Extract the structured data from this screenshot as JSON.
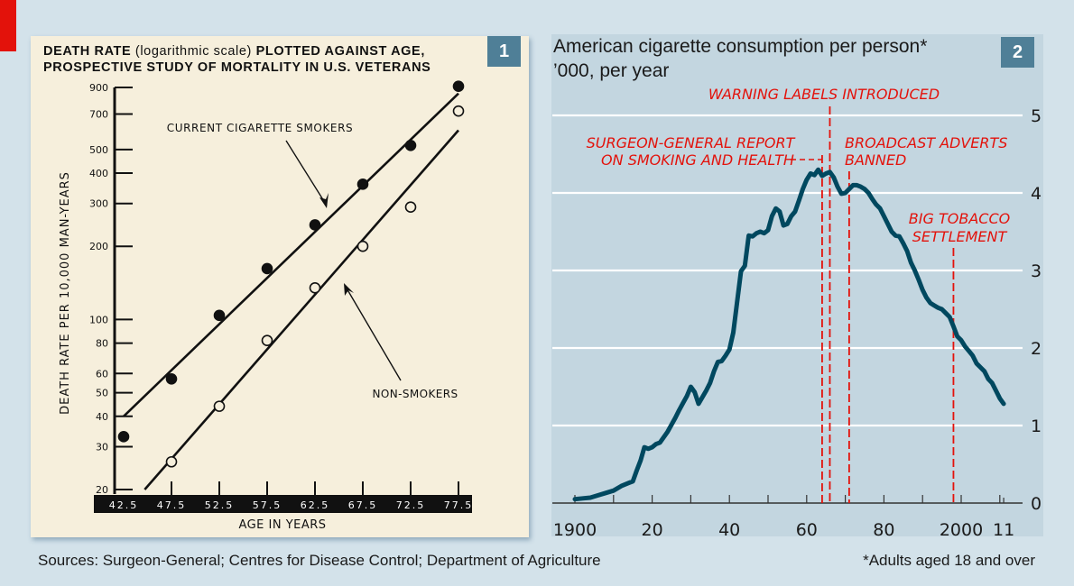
{
  "corner_mark_color": "#e3120b",
  "panel1": {
    "badge": "1",
    "title_bold_1": "DEATH RATE ",
    "title_normal": "(logarithmic scale)",
    "title_bold_2": " PLOTTED AGAINST AGE,",
    "title_line2": "PROSPECTIVE STUDY OF MORTALITY IN U.S. VETERANS"
  },
  "panel2": {
    "badge": "2",
    "title_line1": "American cigarette consumption per person*",
    "title_line2": "’000, per year"
  },
  "footer": {
    "sources": "Sources: Surgeon-General; Centres for Disease Control; Department of Agriculture",
    "note": "*Adults aged 18 and over"
  },
  "colors": {
    "curve": "#00485f",
    "annotation": "#e3120b",
    "badge": "#4f7f97",
    "grid": "#ffffff"
  },
  "chart_data": [
    {
      "type": "scatter",
      "title": "DEATH RATE (logarithmic scale) PLOTTED AGAINST AGE, PROSPECTIVE STUDY OF MORTALITY IN U.S. VETERANS",
      "xlabel": "AGE IN YEARS",
      "ylabel": "DEATH RATE PER 10,000 MAN-YEARS",
      "yscale": "log",
      "ylim": [
        20,
        900
      ],
      "xlim": [
        42.5,
        77.5
      ],
      "x_ticks": [
        "42.5",
        "47.5",
        "52.5",
        "57.5",
        "62.5",
        "67.5",
        "72.5",
        "77.5"
      ],
      "y_ticks": [
        900,
        700,
        500,
        400,
        300,
        200,
        100,
        80,
        60,
        50,
        40,
        30,
        20
      ],
      "series": [
        {
          "name": "CURRENT CIGARETTE SMOKERS",
          "marker": "filled",
          "x": [
            42.5,
            47.5,
            52.5,
            57.5,
            62.5,
            67.5,
            72.5,
            77.5
          ],
          "values": [
            33,
            57,
            104,
            162,
            245,
            360,
            520,
            910
          ],
          "fit_line": {
            "x": [
              42.5,
              77.5
            ],
            "y": [
              40,
              850
            ]
          }
        },
        {
          "name": "NON-SMOKERS",
          "marker": "open",
          "x": [
            47.5,
            52.5,
            57.5,
            62.5,
            67.5,
            72.5,
            77.5
          ],
          "values": [
            26,
            44,
            82,
            135,
            200,
            290,
            720
          ],
          "fit_line": {
            "x": [
              44.7,
              77.5
            ],
            "y": [
              20,
              600
            ]
          }
        }
      ],
      "annotations": [
        {
          "text": "CURRENT CIGARETTE SMOKERS",
          "arrow_to": [
            62.5,
            270
          ]
        },
        {
          "text": "NON-SMOKERS",
          "arrow_to": [
            66.0,
            150
          ]
        }
      ]
    },
    {
      "type": "line",
      "title": "American cigarette consumption per person*",
      "subtitle": "’000, per year",
      "ylim": [
        0,
        5
      ],
      "xlim": [
        1900,
        2011
      ],
      "y_ticks": [
        "0",
        "1",
        "2",
        "3",
        "4",
        "5"
      ],
      "x_tick_labels": [
        "1900",
        "20",
        "40",
        "60",
        "80",
        "2000",
        "11"
      ],
      "x_tick_values": [
        1900,
        1920,
        1940,
        1960,
        1980,
        2000,
        2011
      ],
      "grid": true,
      "series": [
        {
          "name": "Consumption per person",
          "x": [
            1900,
            1902,
            1904,
            1906,
            1908,
            1910,
            1912,
            1914,
            1915,
            1916,
            1917,
            1918,
            1919,
            1920,
            1921,
            1922,
            1924,
            1926,
            1927,
            1928,
            1929,
            1930,
            1931,
            1932,
            1934,
            1935,
            1936,
            1937,
            1938,
            1939,
            1940,
            1941,
            1942,
            1943,
            1944,
            1945,
            1946,
            1947,
            1948,
            1949,
            1950,
            1951,
            1952,
            1953,
            1954,
            1955,
            1956,
            1957,
            1958,
            1959,
            1960,
            1961,
            1962,
            1963,
            1964,
            1965,
            1966,
            1967,
            1968,
            1969,
            1970,
            1971,
            1972,
            1973,
            1974,
            1975,
            1976,
            1977,
            1978,
            1979,
            1980,
            1981,
            1982,
            1983,
            1984,
            1985,
            1986,
            1987,
            1988,
            1989,
            1990,
            1991,
            1992,
            1993,
            1994,
            1995,
            1996,
            1997,
            1998,
            1999,
            2000,
            2001,
            2002,
            2003,
            2004,
            2005,
            2006,
            2007,
            2008,
            2009,
            2010,
            2011
          ],
          "values": [
            0.05,
            0.06,
            0.07,
            0.1,
            0.13,
            0.16,
            0.22,
            0.26,
            0.28,
            0.42,
            0.55,
            0.72,
            0.7,
            0.72,
            0.76,
            0.78,
            0.92,
            1.1,
            1.2,
            1.29,
            1.38,
            1.5,
            1.43,
            1.28,
            1.45,
            1.55,
            1.7,
            1.82,
            1.83,
            1.9,
            1.98,
            2.2,
            2.6,
            2.99,
            3.06,
            3.45,
            3.44,
            3.48,
            3.5,
            3.48,
            3.52,
            3.7,
            3.8,
            3.76,
            3.58,
            3.6,
            3.7,
            3.76,
            3.9,
            4.05,
            4.17,
            4.25,
            4.23,
            4.3,
            4.22,
            4.25,
            4.27,
            4.2,
            4.08,
            3.99,
            4.0,
            4.05,
            4.1,
            4.1,
            4.08,
            4.05,
            4.0,
            3.92,
            3.85,
            3.8,
            3.7,
            3.6,
            3.5,
            3.45,
            3.44,
            3.35,
            3.25,
            3.1,
            3.0,
            2.88,
            2.75,
            2.65,
            2.58,
            2.55,
            2.52,
            2.5,
            2.45,
            2.4,
            2.28,
            2.15,
            2.1,
            2.02,
            1.96,
            1.9,
            1.8,
            1.75,
            1.7,
            1.6,
            1.55,
            1.45,
            1.35,
            1.28
          ]
        }
      ],
      "annotations": [
        {
          "text": "SURGEON-GENERAL REPORT ON SMOKING AND HEALTH",
          "x": 1964
        },
        {
          "text": "WARNING LABELS INTRODUCED",
          "x": 1966
        },
        {
          "text": "BROADCAST ADVERTS BANNED",
          "x": 1971
        },
        {
          "text": "BIG TOBACCO SETTLEMENT",
          "x": 1998
        }
      ]
    }
  ]
}
